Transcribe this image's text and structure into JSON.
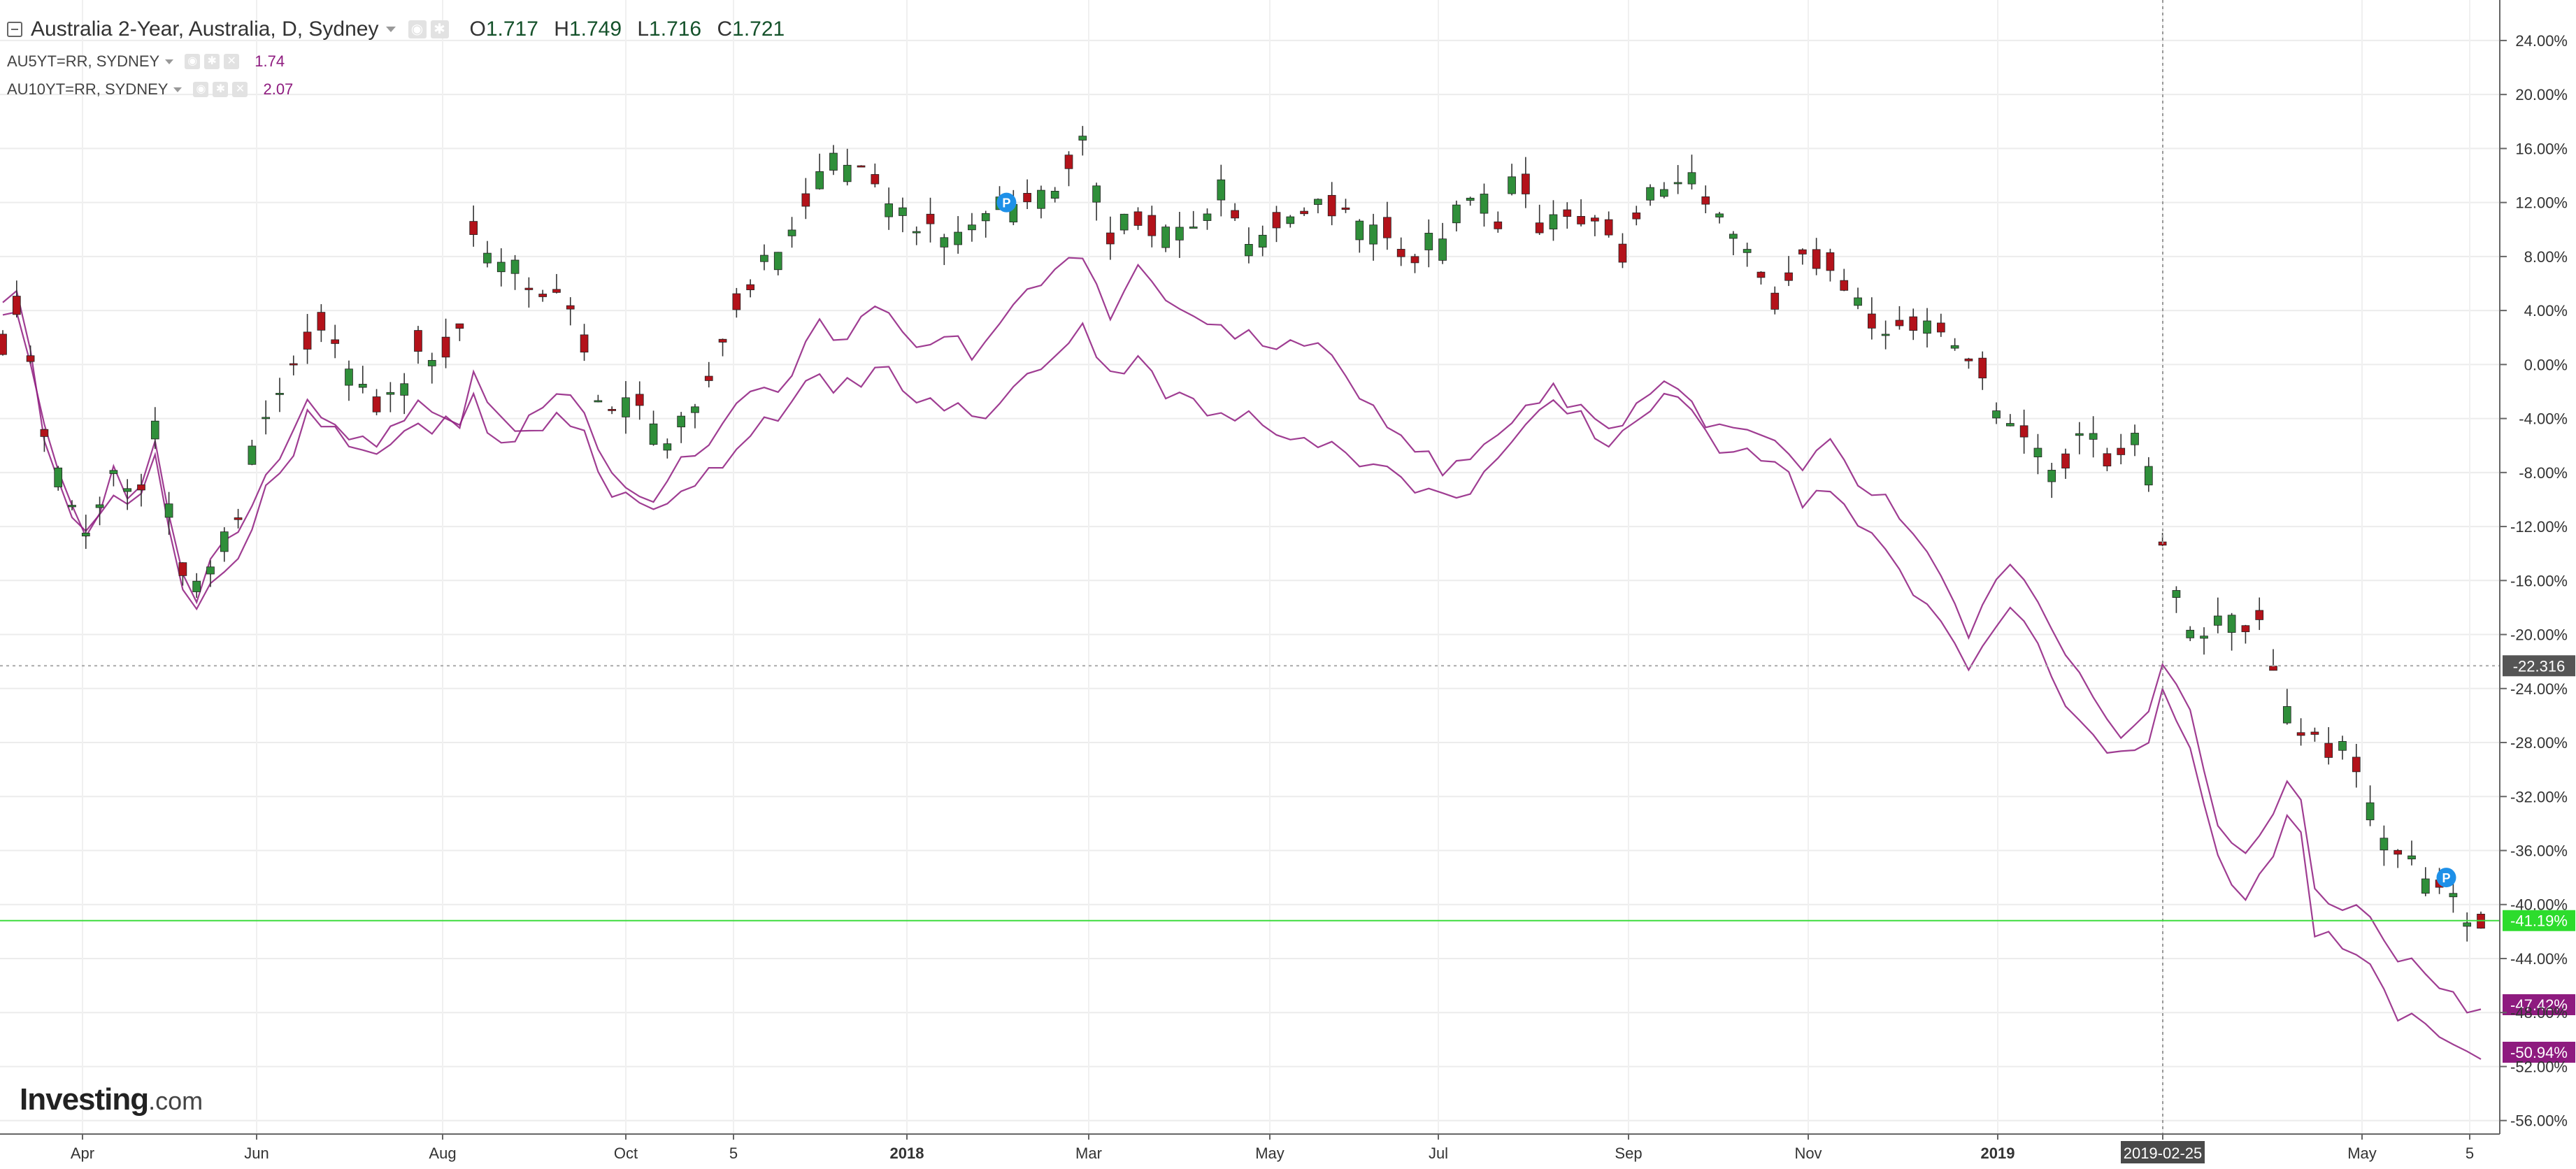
{
  "legend": {
    "main_title": "Australia 2-Year, Australia, D, Sydney",
    "open_label": "O",
    "open": "1.717",
    "high_label": "H",
    "high": "1.749",
    "low_label": "L",
    "low": "1.716",
    "close_label": "C",
    "close": "1.721",
    "sub": [
      {
        "name": "AU5YT=RR, SYDNEY",
        "value": "1.74",
        "color": "#8e1b7f"
      },
      {
        "name": "AU10YT=RR, SYDNEY",
        "value": "2.07",
        "color": "#8e1b7f"
      }
    ]
  },
  "watermark": {
    "brand": "Investing",
    "suffix": ".com"
  },
  "chart_data": {
    "type": "candlestick",
    "x_axis": {
      "labels": [
        "Apr",
        "Jun",
        "Aug",
        "Oct",
        "5",
        "2018",
        "Mar",
        "May",
        "Jul",
        "Sep",
        "Nov",
        "2019",
        "2019-02-25",
        "May",
        "5"
      ],
      "bold": [
        "2018",
        "2019"
      ],
      "highlighted": "2019-02-25"
    },
    "y_axis": {
      "ticks": [
        24,
        20,
        16,
        12,
        8,
        4,
        0,
        -4,
        -8,
        -12,
        -16,
        -20,
        -24,
        -28,
        -32,
        -36,
        -40,
        -44,
        -48,
        -52,
        -56
      ],
      "range": [
        -57,
        27
      ],
      "unit": "%",
      "position": "right"
    },
    "grid": true,
    "colors": {
      "up": "#2f8f3a",
      "down": "#b3121a",
      "compare": "#8e1b7f",
      "price_line": "#3ddc3d"
    },
    "markers": [
      {
        "label": "-22.316",
        "value": -22.316,
        "color": "#555555"
      },
      {
        "label": "-41.19%",
        "value": -41.19,
        "color": "#2ddc2d"
      },
      {
        "label": "-47.42%",
        "value": -47.42,
        "color": "#8e1b7f"
      },
      {
        "label": "-50.94%",
        "value": -50.94,
        "color": "#8e1b7f"
      }
    ],
    "annotations": [
      "P",
      "P"
    ],
    "series": [
      {
        "name": "Australia 2-Year",
        "style": "candles",
        "keypoints": [
          [
            0,
            2
          ],
          [
            0.5,
            5
          ],
          [
            1.5,
            3
          ],
          [
            3,
            -5
          ],
          [
            5,
            -11
          ],
          [
            6,
            -13
          ],
          [
            8,
            -8
          ],
          [
            9.5,
            -10
          ],
          [
            11,
            -5
          ],
          [
            12.5,
            -14
          ],
          [
            14,
            -17
          ],
          [
            16,
            -13
          ],
          [
            17.5,
            -10
          ],
          [
            18.5,
            -5
          ],
          [
            20.5,
            -2
          ],
          [
            21.5,
            1
          ],
          [
            22.5,
            4
          ],
          [
            24,
            1
          ],
          [
            26,
            -2
          ],
          [
            28.5,
            -3
          ],
          [
            30,
            2
          ],
          [
            31,
            0
          ],
          [
            33,
            3
          ],
          [
            34,
            10
          ],
          [
            36,
            7
          ],
          [
            38,
            6
          ],
          [
            40,
            5
          ],
          [
            41.5,
            3
          ],
          [
            43,
            -2
          ],
          [
            44.5,
            -4
          ],
          [
            46,
            -3
          ],
          [
            48,
            -6
          ],
          [
            50,
            -4
          ],
          [
            52,
            2
          ],
          [
            53.5,
            6
          ],
          [
            56,
            8
          ],
          [
            58,
            12
          ],
          [
            60,
            15
          ],
          [
            62,
            14
          ],
          [
            65,
            11
          ],
          [
            67,
            10
          ],
          [
            68,
            9
          ],
          [
            70,
            10
          ],
          [
            72,
            12
          ],
          [
            74,
            12
          ],
          [
            76,
            13
          ],
          [
            78,
            16
          ],
          [
            80,
            10
          ],
          [
            82,
            11
          ],
          [
            84,
            9
          ],
          [
            86,
            10
          ],
          [
            88,
            13
          ],
          [
            90,
            9
          ],
          [
            92,
            10
          ],
          [
            94,
            11
          ],
          [
            96,
            12
          ],
          [
            98,
            10
          ],
          [
            100,
            10
          ],
          [
            102,
            8
          ],
          [
            104,
            9
          ],
          [
            106,
            12
          ],
          [
            108,
            11
          ],
          [
            109.5,
            14
          ],
          [
            111,
            10
          ],
          [
            113,
            11
          ],
          [
            115,
            10
          ],
          [
            117,
            9
          ],
          [
            119,
            12
          ],
          [
            121,
            14
          ],
          [
            123,
            12
          ],
          [
            124.5,
            10
          ],
          [
            126,
            8
          ],
          [
            128,
            5
          ],
          [
            130,
            9
          ],
          [
            132,
            7
          ],
          [
            134,
            5
          ],
          [
            136,
            3
          ],
          [
            138,
            3
          ],
          [
            140,
            3
          ],
          [
            142,
            1
          ],
          [
            144,
            -3
          ],
          [
            146,
            -5
          ],
          [
            148,
            -8
          ],
          [
            150,
            -5
          ],
          [
            152,
            -7
          ],
          [
            154,
            -5
          ],
          [
            156,
            -13
          ],
          [
            158,
            -20
          ],
          [
            160,
            -19
          ],
          [
            162,
            -19
          ],
          [
            163.5,
            -19
          ],
          [
            164.5,
            -25
          ],
          [
            166,
            -28
          ],
          [
            168,
            -28
          ],
          [
            170,
            -30
          ],
          [
            172,
            -35
          ],
          [
            174,
            -37
          ],
          [
            176,
            -39
          ],
          [
            177,
            -40
          ],
          [
            178,
            -41.19
          ]
        ]
      },
      {
        "name": "AU5YT=RR, SYDNEY",
        "style": "line",
        "keypoints": [
          [
            0,
            4
          ],
          [
            0.5,
            5
          ],
          [
            1.5,
            3
          ],
          [
            3,
            -5
          ],
          [
            5,
            -11
          ],
          [
            6,
            -13
          ],
          [
            8,
            -8
          ],
          [
            9.5,
            -10
          ],
          [
            11,
            -6
          ],
          [
            12.5,
            -14
          ],
          [
            14,
            -17
          ],
          [
            15,
            -14
          ],
          [
            16,
            -13
          ],
          [
            17.5,
            -12
          ],
          [
            18.5,
            -8
          ],
          [
            20.5,
            -6
          ],
          [
            22,
            -3
          ],
          [
            24,
            -4
          ],
          [
            26,
            -6
          ],
          [
            28,
            -5
          ],
          [
            30,
            -3
          ],
          [
            31,
            -4
          ],
          [
            33,
            -4
          ],
          [
            34,
            -2
          ],
          [
            35.5,
            -7
          ],
          [
            38,
            -4
          ],
          [
            40,
            -2
          ],
          [
            42,
            -3
          ],
          [
            43.5,
            -7
          ],
          [
            45,
            -9
          ],
          [
            47,
            -10
          ],
          [
            49,
            -7
          ],
          [
            51,
            -6
          ],
          [
            53,
            -3
          ],
          [
            55,
            -2
          ],
          [
            57,
            -1
          ],
          [
            58.5,
            3
          ],
          [
            60,
            2
          ],
          [
            62,
            3
          ],
          [
            63.5,
            4
          ],
          [
            65,
            2
          ],
          [
            67,
            1
          ],
          [
            68.5,
            2
          ],
          [
            70,
            1
          ],
          [
            72,
            3
          ],
          [
            74,
            5
          ],
          [
            76,
            7
          ],
          [
            78,
            8
          ],
          [
            80,
            4
          ],
          [
            82,
            7
          ],
          [
            84,
            5
          ],
          [
            86,
            3
          ],
          [
            88,
            3
          ],
          [
            90,
            2
          ],
          [
            92,
            1
          ],
          [
            94,
            2
          ],
          [
            96,
            0
          ],
          [
            98,
            -2
          ],
          [
            100,
            -4
          ],
          [
            102,
            -6
          ],
          [
            104,
            -8
          ],
          [
            106,
            -7
          ],
          [
            108,
            -5
          ],
          [
            110,
            -3
          ],
          [
            112,
            -2
          ],
          [
            114,
            -3
          ],
          [
            116,
            -5
          ],
          [
            118,
            -3
          ],
          [
            120,
            -1
          ],
          [
            122,
            -3
          ],
          [
            124,
            -5
          ],
          [
            126,
            -5
          ],
          [
            128,
            -6
          ],
          [
            130,
            -8
          ],
          [
            132,
            -6
          ],
          [
            134,
            -9
          ],
          [
            136,
            -10
          ],
          [
            138,
            -13
          ],
          [
            140,
            -16
          ],
          [
            142,
            -20
          ],
          [
            143.5,
            -17
          ],
          [
            145,
            -15
          ],
          [
            147,
            -18
          ],
          [
            149,
            -22
          ],
          [
            151,
            -25
          ],
          [
            153,
            -27
          ],
          [
            155,
            -26
          ],
          [
            156,
            -22
          ],
          [
            158,
            -26
          ],
          [
            160,
            -34
          ],
          [
            162,
            -36
          ],
          [
            164,
            -34
          ],
          [
            165,
            -31
          ],
          [
            166,
            -32
          ],
          [
            167,
            -39
          ],
          [
            169,
            -40
          ],
          [
            171,
            -41
          ],
          [
            173,
            -44
          ],
          [
            175,
            -45
          ],
          [
            177,
            -47
          ],
          [
            178,
            -47.42
          ]
        ]
      },
      {
        "name": "AU10YT=RR, SYDNEY",
        "style": "line",
        "keypoints": [
          [
            0,
            5
          ],
          [
            0.5,
            6
          ],
          [
            1.5,
            4
          ],
          [
            3,
            -5
          ],
          [
            5,
            -11
          ],
          [
            6,
            -13
          ],
          [
            8,
            -9
          ],
          [
            9.5,
            -11
          ],
          [
            11,
            -7
          ],
          [
            12.5,
            -15
          ],
          [
            14,
            -18
          ],
          [
            15,
            -16
          ],
          [
            16,
            -15
          ],
          [
            17.5,
            -14
          ],
          [
            18.5,
            -10
          ],
          [
            20.5,
            -8
          ],
          [
            22,
            -4
          ],
          [
            24,
            -5
          ],
          [
            26,
            -7
          ],
          [
            28,
            -6
          ],
          [
            30,
            -4
          ],
          [
            31,
            -5
          ],
          [
            33,
            -4
          ],
          [
            34,
            -1
          ],
          [
            35.5,
            -4
          ],
          [
            38,
            -5
          ],
          [
            40,
            -4
          ],
          [
            42,
            -5
          ],
          [
            43.5,
            -9
          ],
          [
            45,
            -10
          ],
          [
            47,
            -11
          ],
          [
            49,
            -9
          ],
          [
            51,
            -8
          ],
          [
            53,
            -6
          ],
          [
            55,
            -4
          ],
          [
            57,
            -3
          ],
          [
            58.5,
            -1
          ],
          [
            60,
            -2
          ],
          [
            62,
            -1
          ],
          [
            63.5,
            0
          ],
          [
            65,
            -2
          ],
          [
            67,
            -3
          ],
          [
            68.5,
            -3
          ],
          [
            70,
            -4
          ],
          [
            72,
            -3
          ],
          [
            74,
            -1
          ],
          [
            76,
            1
          ],
          [
            78,
            3
          ],
          [
            80,
            -1
          ],
          [
            82,
            1
          ],
          [
            84,
            -2
          ],
          [
            86,
            -3
          ],
          [
            88,
            -4
          ],
          [
            90,
            -4
          ],
          [
            92,
            -5
          ],
          [
            94,
            -5
          ],
          [
            96,
            -6
          ],
          [
            98,
            -7
          ],
          [
            100,
            -8
          ],
          [
            102,
            -9
          ],
          [
            104,
            -10
          ],
          [
            106,
            -9
          ],
          [
            108,
            -7
          ],
          [
            110,
            -5
          ],
          [
            112,
            -3
          ],
          [
            114,
            -4
          ],
          [
            116,
            -6
          ],
          [
            118,
            -4
          ],
          [
            120,
            -2
          ],
          [
            122,
            -4
          ],
          [
            124,
            -6
          ],
          [
            126,
            -6
          ],
          [
            128,
            -7
          ],
          [
            130,
            -10
          ],
          [
            132,
            -9
          ],
          [
            134,
            -12
          ],
          [
            136,
            -14
          ],
          [
            138,
            -17
          ],
          [
            140,
            -19
          ],
          [
            142,
            -22
          ],
          [
            143.5,
            -20
          ],
          [
            145,
            -18
          ],
          [
            147,
            -21
          ],
          [
            149,
            -25
          ],
          [
            151,
            -28
          ],
          [
            153,
            -29
          ],
          [
            155,
            -28
          ],
          [
            156,
            -24
          ],
          [
            158,
            -28
          ],
          [
            160,
            -37
          ],
          [
            162,
            -39
          ],
          [
            164,
            -37
          ],
          [
            165,
            -34
          ],
          [
            166,
            -35
          ],
          [
            167,
            -42
          ],
          [
            169,
            -43
          ],
          [
            171,
            -45
          ],
          [
            173,
            -48
          ],
          [
            175,
            -49
          ],
          [
            177,
            -51
          ],
          [
            178,
            -50.94
          ]
        ]
      }
    ],
    "annotation_points": [
      [
        72.5,
        12
      ],
      [
        176.5,
        -38
      ]
    ]
  }
}
